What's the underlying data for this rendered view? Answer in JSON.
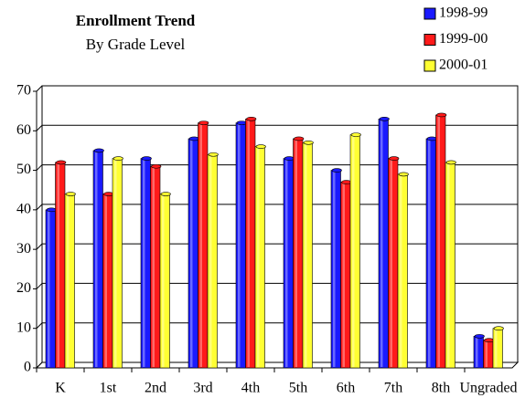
{
  "chart_data": {
    "type": "bar",
    "title": "Enrollment Trend",
    "subtitle": "By Grade Level",
    "categories": [
      "K",
      "1st",
      "2nd",
      "3rd",
      "4th",
      "5th",
      "6th",
      "7th",
      "8th",
      "Ungraded"
    ],
    "series": [
      {
        "name": "1998-99",
        "color": "#1a1aff",
        "values": [
          40,
          55,
          53,
          58,
          62,
          53,
          50,
          63,
          58,
          8
        ]
      },
      {
        "name": "1999-00",
        "color": "#ff1a1a",
        "values": [
          52,
          44,
          51,
          62,
          63,
          58,
          47,
          53,
          64,
          7
        ]
      },
      {
        "name": "2000-01",
        "color": "#ffff33",
        "values": [
          44,
          53,
          44,
          54,
          56,
          57,
          59,
          49,
          52,
          10
        ]
      }
    ],
    "ylim": [
      0,
      70
    ],
    "yticks": [
      0,
      10,
      20,
      30,
      40,
      50,
      60,
      70
    ],
    "grid": true,
    "legend": "top-right"
  }
}
